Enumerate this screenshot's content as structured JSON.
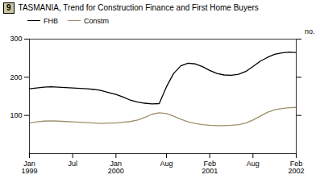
{
  "chart_data": {
    "type": "line",
    "title": "TASMANIA, Trend for Construction Finance and First Home Buyers",
    "annotations": [
      "9"
    ],
    "ylabel": "no.",
    "categories": [
      "Jan\n1999",
      null,
      null,
      null,
      null,
      null,
      "Jul",
      null,
      null,
      null,
      null,
      null,
      "Jan\n2000",
      null,
      null,
      null,
      null,
      null,
      null,
      "Aug",
      null,
      null,
      null,
      null,
      null,
      "Feb\n2001",
      null,
      null,
      null,
      null,
      null,
      "Aug",
      null,
      null,
      null,
      null,
      null,
      "Feb\n2002"
    ],
    "series": [
      {
        "name": "FHB",
        "color": "#000000",
        "values": [
          170,
          172,
          174,
          175,
          174,
          173,
          172,
          171,
          170,
          168,
          165,
          160,
          155,
          148,
          140,
          135,
          132,
          130,
          131,
          175,
          210,
          230,
          237,
          235,
          228,
          218,
          210,
          206,
          205,
          208,
          215,
          228,
          242,
          252,
          260,
          264,
          266,
          265
        ]
      },
      {
        "name": "Constm",
        "color": "#9e8f6a",
        "values": [
          80,
          83,
          85,
          86,
          85,
          84,
          83,
          82,
          81,
          80,
          79,
          80,
          80,
          82,
          84,
          88,
          95,
          103,
          107,
          105,
          98,
          90,
          83,
          79,
          76,
          74,
          73,
          73,
          74,
          76,
          80,
          88,
          98,
          108,
          115,
          118,
          120,
          121
        ]
      }
    ],
    "ylim": [
      0,
      300
    ],
    "yticks": [
      100,
      200,
      300
    ],
    "grid": false,
    "legend": "top"
  }
}
